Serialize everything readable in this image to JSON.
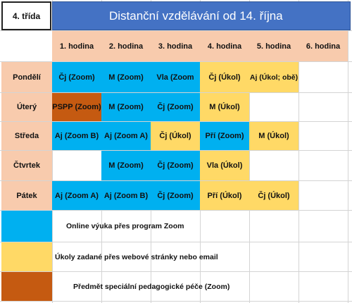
{
  "header": {
    "class_label": "4. třída",
    "title": "Distanční vzdělávání  od 14. října"
  },
  "hours": [
    "1. hodina",
    "2. hodina",
    "3. hodina",
    "4. hodina",
    "5. hodina",
    "6. hodina"
  ],
  "days": [
    "Pondělí",
    "Úterý",
    "Středa",
    "Čtvrtek",
    "Pátek"
  ],
  "schedule": [
    [
      "Čj (Zoom)",
      "M (Zoom)",
      "Vla (Zoom",
      "Čj (Úkol)",
      "Aj (Úkol; obě)",
      ""
    ],
    [
      "PSPP (Zoom)",
      "M (Zoom)",
      "Čj (Zoom)",
      "M (Úkol)",
      "",
      ""
    ],
    [
      "Aj (Zoom B)",
      "Aj (Zoom A)",
      "Čj (Úkol)",
      "Pří (Zoom)",
      "M (Úkol)",
      ""
    ],
    [
      "",
      "M (Zoom)",
      "Čj (Zoom)",
      "Vla (Úkol)",
      "",
      ""
    ],
    [
      "Aj (Zoom A)",
      "Aj (Zoom B)",
      "Čj (Zoom)",
      "Pří (Úkol)",
      "Čj (Úkol)",
      ""
    ]
  ],
  "legend": [
    {
      "color": "#00b0f0",
      "text": "Online výuka přes program Zoom"
    },
    {
      "color": "#ffd966",
      "text": "Úkoly zadané přes webové stránky nebo email"
    },
    {
      "color": "#c55a11",
      "text": "Předmět speciální pedagogické péče (Zoom)"
    }
  ],
  "colors": {
    "title_bg": "#4472c4",
    "header_bg": "#f8cbad",
    "zoom": "#00b0f0",
    "task": "#ffd966",
    "special": "#c55a11"
  }
}
